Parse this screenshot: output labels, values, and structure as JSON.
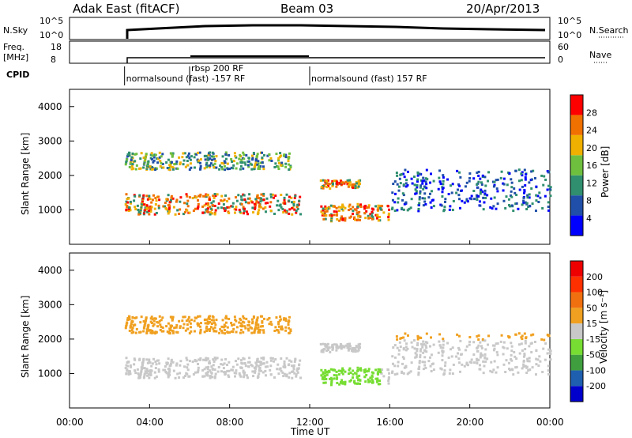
{
  "header": {
    "title_left": "Adak East (fitACF)",
    "title_center": "Beam 03",
    "title_right": "20/Apr/2013"
  },
  "strip": {
    "nsky_label": "N.Sky",
    "nsky_ticks": [
      "10^5",
      "10^0"
    ],
    "nsearch_label": "N.Search",
    "nsearch_ticks": [
      "10^5",
      "10^0"
    ],
    "freq_label": "Freq.",
    "freq_unit": "[MHz]",
    "freq_ticks": [
      "18",
      "8"
    ],
    "nave_label": "Nave",
    "nave_ticks": [
      "60",
      "0"
    ],
    "cpid_label": "CPID",
    "cpid_segments": [
      {
        "label": "normalsound (fast) -157 RF",
        "start": 2.75,
        "end": 12.0
      },
      {
        "label": "rbsp 200 RF",
        "start": 6.0,
        "end": 12.0
      },
      {
        "label": "normalsound (fast) 157 RF",
        "start": 12.0,
        "end": 24.0
      }
    ]
  },
  "x_axis": {
    "label": "Time UT",
    "ticks": [
      "00:00",
      "04:00",
      "08:00",
      "12:00",
      "16:00",
      "20:00",
      "00:00"
    ]
  },
  "power_panel": {
    "ylabel": "Slant Range [km]",
    "yticks": [
      "4000",
      "3000",
      "2000",
      "1000"
    ],
    "colorbar_label": "Power [dB]",
    "colorbar_ticks": [
      "28",
      "24",
      "20",
      "16",
      "12",
      "8",
      "4"
    ],
    "colors": [
      "#0000ff",
      "#1f4fa8",
      "#2f8f6f",
      "#6fbf3f",
      "#f0b000",
      "#f07000",
      "#ff0000"
    ]
  },
  "velocity_panel": {
    "ylabel": "Slant Range [km]",
    "yticks": [
      "4000",
      "3000",
      "2000",
      "1000"
    ],
    "colorbar_label": "Velocity [m s⁻¹]",
    "colorbar_ticks": [
      "200",
      "100",
      "50",
      "15",
      "-15",
      "-50",
      "-100",
      "-200"
    ],
    "colors": [
      "#0000cc",
      "#1f5fb0",
      "#3f9f3f",
      "#77dd33",
      "#c8c8c8",
      "#f0a020",
      "#f07010",
      "#ff3000",
      "#ee0000"
    ]
  },
  "chart_data": {
    "type": "heatmap",
    "x_range_hours": [
      0,
      24
    ],
    "y_range_km": [
      0,
      4500
    ],
    "power_bands": [
      {
        "t0": 2.75,
        "t1": 11.5,
        "r0": 900,
        "r1": 1500,
        "level": "high"
      },
      {
        "t0": 2.75,
        "t1": 11.0,
        "r0": 2200,
        "r1": 2700,
        "level": "medium"
      },
      {
        "t0": 12.5,
        "t1": 14.5,
        "r0": 1650,
        "r1": 1900,
        "level": "high"
      },
      {
        "t0": 12.5,
        "t1": 16.0,
        "r0": 700,
        "r1": 1200,
        "level": "high"
      },
      {
        "t0": 16.0,
        "t1": 24.0,
        "r0": 1000,
        "r1": 2200,
        "level": "low"
      }
    ]
  }
}
